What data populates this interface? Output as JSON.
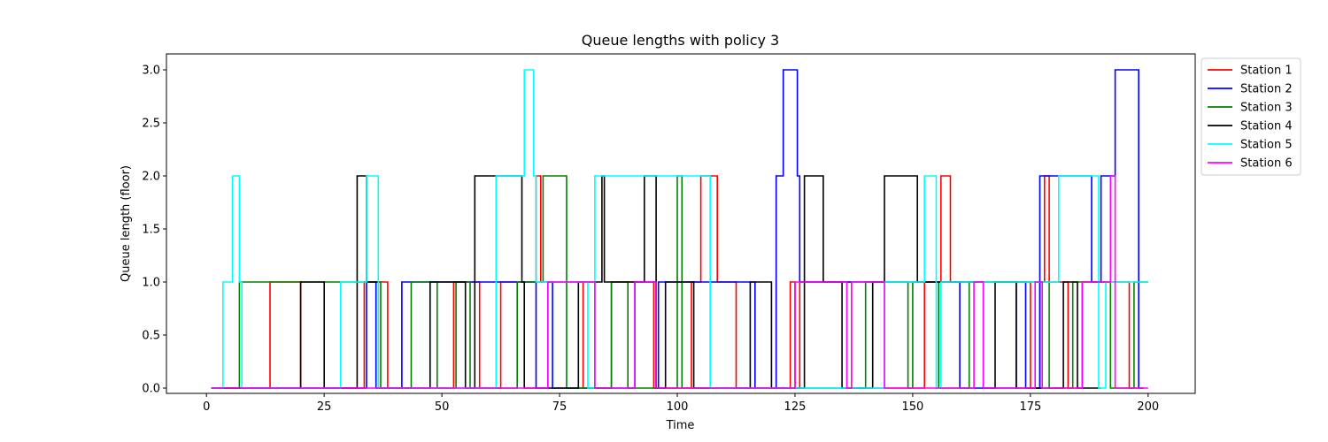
{
  "chart_data": {
    "type": "line",
    "step": true,
    "title": "Queue lengths with policy 3",
    "xlabel": "Time",
    "ylabel": "Queue length (floor)",
    "xlim": [
      -8.5,
      210
    ],
    "ylim": [
      -0.05,
      3.15
    ],
    "xticks": [
      0,
      25,
      50,
      75,
      100,
      125,
      150,
      175,
      200
    ],
    "yticks": [
      0.0,
      0.5,
      1.0,
      1.5,
      2.0,
      2.5,
      3.0
    ],
    "ytick_labels": [
      "0.0",
      "0.5",
      "1.0",
      "1.5",
      "2.0",
      "2.5",
      "3.0"
    ],
    "legend_position": "outside upper right",
    "grid": false,
    "series": [
      {
        "name": "Station 1",
        "color": "#ff0000",
        "x": [
          1,
          13.5,
          20,
          33.5,
          38.5,
          52.5,
          58,
          62.5,
          70,
          71,
          80,
          86,
          95,
          103,
          105,
          106,
          108.5,
          112.5,
          124,
          125,
          126,
          137,
          152.5,
          153,
          156,
          158,
          175,
          177,
          178,
          179,
          183,
          186,
          188,
          190,
          196,
          199
        ],
        "y": [
          0,
          1,
          0,
          1,
          0,
          1,
          0,
          1,
          2,
          1,
          0,
          1,
          0,
          1,
          2,
          2,
          1,
          0,
          1,
          0,
          1,
          0,
          1,
          1,
          2,
          1,
          0,
          1,
          2,
          1,
          0,
          1,
          1,
          1,
          0,
          0
        ]
      },
      {
        "name": "Station 2",
        "color": "#0000ff",
        "x": [
          1,
          34,
          36,
          41.5,
          70,
          72.5,
          73.5,
          91,
          95.5,
          96,
          106,
          116.5,
          121,
          122.5,
          125.5,
          126,
          131,
          160,
          172,
          174,
          177,
          181,
          188,
          190,
          193,
          198,
          199
        ],
        "y": [
          0,
          1,
          0,
          1,
          0,
          1,
          0,
          1,
          0,
          1,
          1,
          0,
          2,
          3,
          2,
          1,
          1,
          0,
          1,
          0,
          2,
          2,
          1,
          2,
          3,
          0,
          0
        ]
      },
      {
        "name": "Station 3",
        "color": "#008000",
        "x": [
          1,
          7,
          13.5,
          20.5,
          37,
          43.5,
          49,
          53,
          56,
          66,
          71.5,
          76.5,
          82,
          86,
          89.5,
          100,
          101,
          123,
          140,
          149,
          150,
          155.5,
          162,
          172,
          179,
          184,
          187,
          192,
          197,
          200
        ],
        "y": [
          0,
          1,
          1,
          1,
          0,
          1,
          0,
          1,
          0,
          1,
          2,
          0,
          0,
          1,
          0,
          2,
          0,
          0,
          1,
          0,
          1,
          0,
          1,
          1,
          0,
          1,
          1,
          0,
          1,
          1
        ]
      },
      {
        "name": "Station 4",
        "color": "#000000",
        "x": [
          1,
          20,
          25,
          32,
          34,
          36.5,
          47.5,
          55,
          57,
          67,
          67.5,
          79,
          84,
          84.5,
          93,
          95.5,
          97.5,
          103.5,
          115.5,
          120,
          127,
          131,
          135,
          141.5,
          144,
          151,
          153,
          165,
          167.5,
          172,
          182,
          185,
          190
        ],
        "y": [
          0,
          1,
          0,
          2,
          1,
          0,
          1,
          0,
          2,
          1,
          0,
          1,
          2,
          1,
          2,
          0,
          1,
          0,
          1,
          0,
          2,
          1,
          0,
          1,
          2,
          1,
          1,
          0,
          1,
          0,
          1,
          0,
          0
        ]
      },
      {
        "name": "Station 5",
        "color": "#00ffff",
        "x": [
          1,
          3.5,
          5.5,
          7,
          7.5,
          28.5,
          34,
          36.5,
          47.5,
          61.5,
          67.5,
          69.5,
          70,
          81,
          82.5,
          95,
          105.5,
          107,
          126,
          128,
          136,
          144,
          152.5,
          155,
          156,
          177,
          181,
          189.5,
          191,
          200
        ],
        "y": [
          0,
          1,
          2,
          1,
          0,
          1,
          2,
          0,
          0,
          2,
          3,
          2,
          1,
          0,
          2,
          2,
          2,
          0,
          0,
          0,
          0,
          1,
          2,
          0,
          1,
          1,
          2,
          0,
          1,
          1
        ]
      },
      {
        "name": "Station 6",
        "color": "#ff00ff",
        "x": [
          1,
          72.5,
          82.5,
          91,
          95.5,
          125,
          136,
          137,
          144,
          163,
          165,
          176,
          177.5,
          186,
          192,
          193,
          200
        ],
        "y": [
          0,
          1,
          0,
          1,
          0,
          1,
          0,
          1,
          0,
          1,
          0,
          1,
          0,
          1,
          2,
          0,
          0
        ]
      }
    ]
  }
}
